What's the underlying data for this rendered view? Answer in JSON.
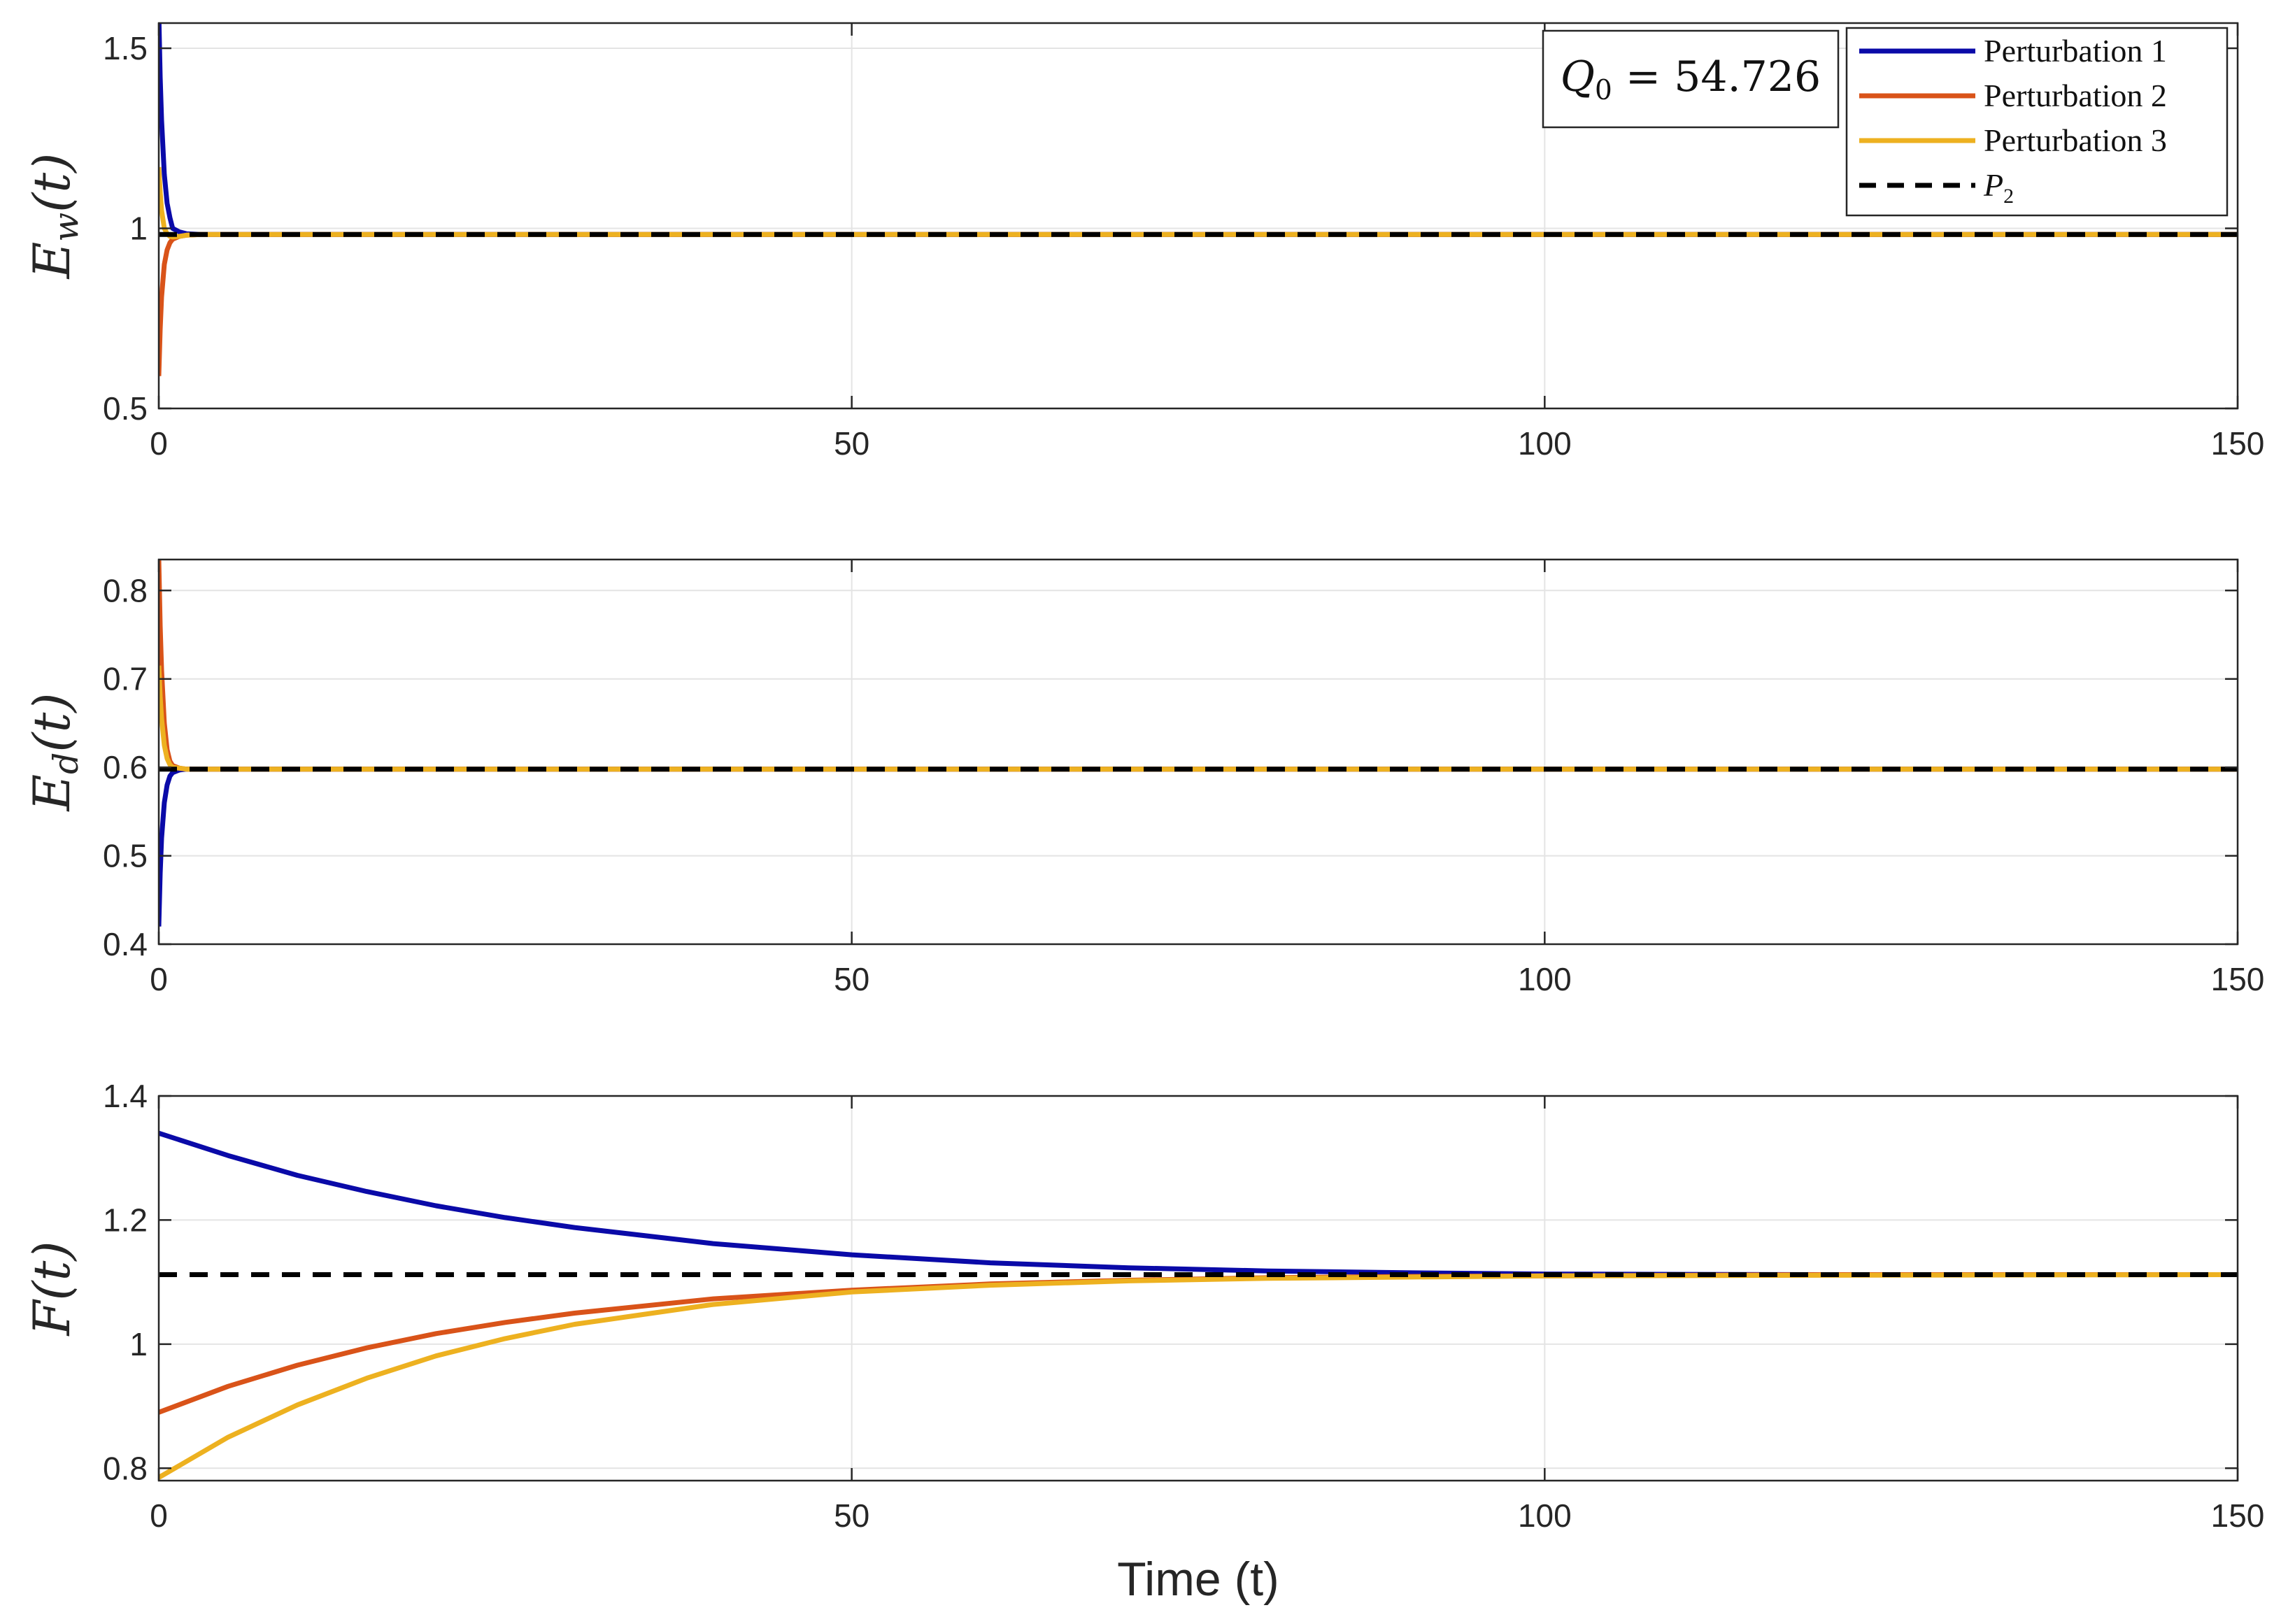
{
  "chart_data": [
    {
      "type": "line",
      "ylabel": "E_w(t)",
      "xlim": [
        0,
        150
      ],
      "ylim": [
        0.5,
        1.57
      ],
      "xticks": [
        0,
        50,
        100,
        150
      ],
      "yticks": [
        0.5,
        1,
        1.5
      ],
      "ytick_labels": [
        "0.5",
        "1",
        "1.5"
      ],
      "grid": true,
      "annotation": "Q_0 = 54.726",
      "legend": {
        "placement": "top-right",
        "entries": [
          "Perturbation 1",
          "Perturbation 2",
          "Perturbation 3",
          "P_2"
        ]
      },
      "series": [
        {
          "name": "Perturbation 1",
          "color": "#0a0aa8",
          "x": [
            0,
            0.1,
            0.2,
            0.4,
            0.6,
            0.8,
            1.0,
            1.5,
            2,
            3,
            5,
            150
          ],
          "y": [
            1.6,
            1.42,
            1.3,
            1.15,
            1.07,
            1.03,
            1.0,
            0.99,
            0.985,
            0.983,
            0.983,
            0.983
          ]
        },
        {
          "name": "Perturbation 2",
          "color": "#d95319",
          "x": [
            0,
            0.1,
            0.2,
            0.4,
            0.6,
            0.8,
            1.0,
            1.5,
            2,
            3,
            5,
            150
          ],
          "y": [
            0.59,
            0.72,
            0.81,
            0.9,
            0.94,
            0.96,
            0.97,
            0.978,
            0.981,
            0.983,
            0.983,
            0.983
          ]
        },
        {
          "name": "Perturbation 3",
          "color": "#edb120",
          "x": [
            0,
            0.1,
            0.2,
            0.4,
            0.6,
            0.8,
            1.0,
            1.5,
            2,
            3,
            5,
            150
          ],
          "y": [
            1.17,
            1.1,
            1.05,
            1.0,
            0.985,
            0.978,
            0.976,
            0.978,
            0.981,
            0.983,
            0.983,
            0.983
          ]
        },
        {
          "name": "P_2",
          "color": "#000000",
          "dashed": true,
          "x": [
            0,
            150
          ],
          "y": [
            0.983,
            0.983
          ]
        }
      ]
    },
    {
      "type": "line",
      "ylabel": "E_d(t)",
      "xlim": [
        0,
        150
      ],
      "ylim": [
        0.4,
        0.835
      ],
      "xticks": [
        0,
        50,
        100,
        150
      ],
      "yticks": [
        0.4,
        0.5,
        0.6,
        0.7,
        0.8
      ],
      "ytick_labels": [
        "0.4",
        "0.5",
        "0.6",
        "0.7",
        "0.8"
      ],
      "grid": true,
      "series": [
        {
          "name": "Perturbation 1",
          "color": "#0a0aa8",
          "x": [
            0,
            0.1,
            0.2,
            0.4,
            0.6,
            0.8,
            1.0,
            1.5,
            2,
            3,
            150
          ],
          "y": [
            0.42,
            0.48,
            0.52,
            0.56,
            0.58,
            0.59,
            0.594,
            0.597,
            0.598,
            0.598,
            0.598
          ]
        },
        {
          "name": "Perturbation 2",
          "color": "#d95319",
          "x": [
            0,
            0.1,
            0.2,
            0.4,
            0.6,
            0.8,
            1.0,
            1.5,
            2,
            3,
            150
          ],
          "y": [
            0.835,
            0.76,
            0.71,
            0.65,
            0.62,
            0.607,
            0.602,
            0.599,
            0.598,
            0.598,
            0.598
          ]
        },
        {
          "name": "Perturbation 3",
          "color": "#edb120",
          "x": [
            0,
            0.1,
            0.2,
            0.4,
            0.6,
            0.8,
            1.0,
            1.5,
            2,
            3,
            150
          ],
          "y": [
            0.715,
            0.68,
            0.655,
            0.625,
            0.61,
            0.603,
            0.6,
            0.599,
            0.598,
            0.598,
            0.598
          ]
        },
        {
          "name": "P_2",
          "color": "#000000",
          "dashed": true,
          "x": [
            0,
            150
          ],
          "y": [
            0.598,
            0.598
          ]
        }
      ]
    },
    {
      "type": "line",
      "xlabel": "Time (t)",
      "ylabel": "F(t)",
      "xlim": [
        0,
        150
      ],
      "ylim": [
        0.78,
        1.4
      ],
      "xticks": [
        0,
        50,
        100,
        150
      ],
      "yticks": [
        0.8,
        1,
        1.2,
        1.4
      ],
      "ytick_labels": [
        "0.8",
        "1",
        "1.2",
        "1.4"
      ],
      "grid": true,
      "series": [
        {
          "name": "Perturbation 1",
          "color": "#0a0aa8",
          "x": [
            0,
            5,
            10,
            15,
            20,
            25,
            30,
            40,
            50,
            60,
            70,
            80,
            90,
            100,
            120,
            150
          ],
          "y": [
            1.34,
            1.304,
            1.272,
            1.246,
            1.223,
            1.204,
            1.188,
            1.162,
            1.144,
            1.131,
            1.123,
            1.118,
            1.115,
            1.113,
            1.112,
            1.112
          ]
        },
        {
          "name": "Perturbation 2",
          "color": "#d95319",
          "x": [
            0,
            5,
            10,
            15,
            20,
            25,
            30,
            40,
            50,
            60,
            70,
            80,
            90,
            100,
            120,
            150
          ],
          "y": [
            0.89,
            0.932,
            0.966,
            0.994,
            1.017,
            1.035,
            1.05,
            1.073,
            1.087,
            1.097,
            1.103,
            1.107,
            1.109,
            1.11,
            1.112,
            1.112
          ]
        },
        {
          "name": "Perturbation 3",
          "color": "#edb120",
          "x": [
            0,
            5,
            10,
            15,
            20,
            25,
            30,
            40,
            50,
            60,
            70,
            80,
            90,
            100,
            120,
            150
          ],
          "y": [
            0.785,
            0.85,
            0.902,
            0.945,
            0.981,
            1.009,
            1.032,
            1.064,
            1.084,
            1.095,
            1.102,
            1.106,
            1.108,
            1.11,
            1.111,
            1.112
          ]
        },
        {
          "name": "P_2",
          "color": "#000000",
          "dashed": true,
          "x": [
            0,
            150
          ],
          "y": [
            1.112,
            1.112
          ]
        }
      ]
    }
  ]
}
